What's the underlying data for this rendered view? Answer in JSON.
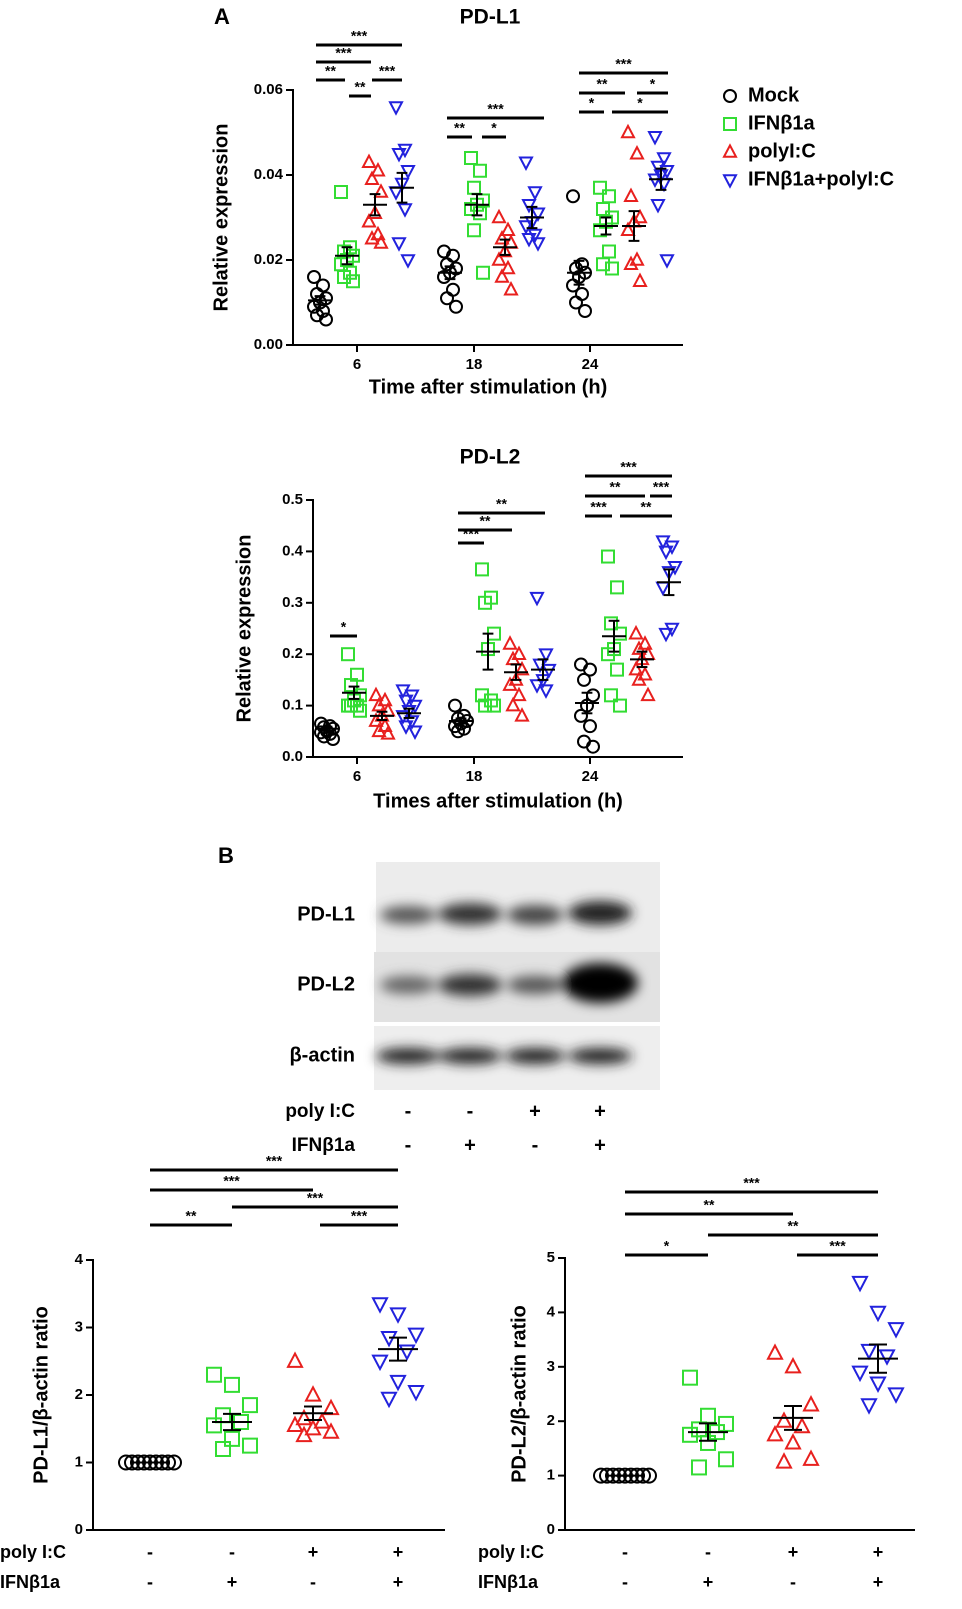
{
  "panels": [
    "A",
    "B"
  ],
  "chart_data": [
    {
      "type": "dotplot",
      "title": "PD-L1",
      "xlabel": "Time after stimulation (h)",
      "ylabel": "Relative expression",
      "categories": [
        "6",
        "18",
        "24"
      ],
      "ylim": [
        0,
        0.06
      ],
      "yticks": [
        {
          "value": 0,
          "label": "0.00"
        },
        {
          "value": 0.02,
          "label": "0.02"
        },
        {
          "value": 0.04,
          "label": "0.04"
        },
        {
          "value": 0.06,
          "label": "0.06"
        }
      ],
      "legend": "right",
      "series": [
        {
          "name": "Mock",
          "color": "#000000",
          "marker": "circle",
          "values": [
            [
              0.016,
              0.014,
              0.012,
              0.011,
              0.01,
              0.009,
              0.008,
              0.007,
              0.006
            ],
            [
              0.022,
              0.021,
              0.019,
              0.018,
              0.017,
              0.016,
              0.013,
              0.011,
              0.009
            ],
            [
              0.035,
              0.019,
              0.018,
              0.017,
              0.016,
              0.014,
              0.012,
              0.01,
              0.008
            ]
          ],
          "mean": [
            0.0105,
            0.017,
            0.017
          ],
          "sem": [
            0.001,
            0.0015,
            0.0028
          ]
        },
        {
          "name": "IFNβ1a",
          "color": "#33dd33",
          "marker": "square",
          "values": [
            [
              0.036,
              0.023,
              0.022,
              0.021,
              0.02,
              0.019,
              0.017,
              0.016,
              0.015
            ],
            [
              0.044,
              0.041,
              0.037,
              0.034,
              0.033,
              0.032,
              0.031,
              0.027,
              0.017
            ],
            [
              0.037,
              0.035,
              0.032,
              0.03,
              0.029,
              0.027,
              0.022,
              0.019,
              0.018
            ]
          ],
          "mean": [
            0.021,
            0.033,
            0.028
          ],
          "sem": [
            0.002,
            0.0025,
            0.002
          ]
        },
        {
          "name": "polyI:C",
          "color": "#e8201e",
          "marker": "triangle-up",
          "values": [
            [
              0.043,
              0.041,
              0.039,
              0.036,
              0.031,
              0.029,
              0.026,
              0.025,
              0.024
            ],
            [
              0.03,
              0.027,
              0.025,
              0.024,
              0.022,
              0.02,
              0.018,
              0.016,
              0.013
            ],
            [
              0.05,
              0.045,
              0.035,
              0.03,
              0.029,
              0.027,
              0.02,
              0.019,
              0.015
            ]
          ],
          "mean": [
            0.033,
            0.023,
            0.028
          ],
          "sem": [
            0.0025,
            0.0018,
            0.0035
          ]
        },
        {
          "name": "IFNβ1a+polyI:C",
          "color": "#2222dd",
          "marker": "triangle-down",
          "values": [
            [
              0.056,
              0.046,
              0.045,
              0.041,
              0.038,
              0.036,
              0.032,
              0.024,
              0.02
            ],
            [
              0.043,
              0.036,
              0.033,
              0.031,
              0.029,
              0.028,
              0.026,
              0.025,
              0.024
            ],
            [
              0.049,
              0.044,
              0.042,
              0.041,
              0.04,
              0.039,
              0.038,
              0.033,
              0.02
            ]
          ],
          "mean": [
            0.037,
            0.03,
            0.039
          ],
          "sem": [
            0.0035,
            0.0025,
            0.0025
          ]
        }
      ],
      "significance": [
        {
          "label": "**"
        },
        {
          "label": "***"
        },
        {
          "label": "**"
        },
        {
          "label": "***"
        },
        {
          "label": "***"
        },
        {
          "label": "**"
        },
        {
          "label": "*"
        },
        {
          "label": "***"
        },
        {
          "label": "*"
        },
        {
          "label": "*"
        },
        {
          "label": "**"
        },
        {
          "label": "*"
        },
        {
          "label": "***"
        }
      ]
    },
    {
      "type": "dotplot",
      "title": "PD-L2",
      "xlabel": "Times after stimulation (h)",
      "ylabel": "Relative expression",
      "categories": [
        "6",
        "18",
        "24"
      ],
      "ylim": [
        0,
        0.5
      ],
      "yticks": [
        {
          "value": 0,
          "label": "0.0"
        },
        0.1,
        0.2,
        0.3,
        0.4,
        0.5
      ],
      "series": [
        {
          "name": "Mock",
          "color": "#000000",
          "marker": "circle",
          "values": [
            [
              0.065,
              0.06,
              0.058,
              0.055,
              0.05,
              0.048,
              0.045,
              0.04,
              0.035
            ],
            [
              0.1,
              0.08,
              0.075,
              0.07,
              0.065,
              0.06,
              0.055,
              0.05
            ],
            [
              0.18,
              0.17,
              0.15,
              0.12,
              0.1,
              0.08,
              0.06,
              0.03,
              0.02
            ]
          ],
          "mean": [
            0.055,
            0.07,
            0.105
          ],
          "sem": [
            0.004,
            0.005,
            0.02
          ]
        },
        {
          "name": "IFNβ1a",
          "color": "#33dd33",
          "marker": "square",
          "values": [
            [
              0.2,
              0.16,
              0.14,
              0.12,
              0.11,
              0.1,
              0.1,
              0.1,
              0.09
            ],
            [
              0.365,
              0.31,
              0.3,
              0.24,
              0.21,
              0.12,
              0.11,
              0.1,
              0.1
            ],
            [
              0.39,
              0.33,
              0.26,
              0.24,
              0.21,
              0.2,
              0.17,
              0.12,
              0.1
            ]
          ],
          "mean": [
            0.125,
            0.205,
            0.235
          ],
          "sem": [
            0.012,
            0.035,
            0.03
          ]
        },
        {
          "name": "polyI:C",
          "color": "#e8201e",
          "marker": "triangle-up",
          "values": [
            [
              0.12,
              0.11,
              0.1,
              0.09,
              0.08,
              0.07,
              0.06,
              0.05,
              0.045
            ],
            [
              0.22,
              0.2,
              0.19,
              0.17,
              0.15,
              0.14,
              0.12,
              0.1,
              0.08
            ],
            [
              0.24,
              0.22,
              0.21,
              0.2,
              0.19,
              0.17,
              0.16,
              0.15,
              0.12
            ]
          ],
          "mean": [
            0.08,
            0.165,
            0.19
          ],
          "sem": [
            0.008,
            0.015,
            0.015
          ]
        },
        {
          "name": "IFNβ1a+polyI:C",
          "color": "#2222dd",
          "marker": "triangle-down",
          "values": [
            [
              0.13,
              0.12,
              0.11,
              0.1,
              0.09,
              0.08,
              0.07,
              0.06,
              0.05
            ],
            [
              0.31,
              0.2,
              0.18,
              0.17,
              0.15,
              0.14,
              0.13
            ],
            [
              0.42,
              0.41,
              0.4,
              0.37,
              0.36,
              0.33,
              0.25,
              0.24
            ]
          ],
          "mean": [
            0.085,
            0.17,
            0.34
          ],
          "sem": [
            0.009,
            0.02,
            0.025
          ]
        }
      ],
      "significance": [
        {
          "label": "*"
        },
        {
          "label": "***"
        },
        {
          "label": "**"
        },
        {
          "label": "**"
        },
        {
          "label": "***"
        },
        {
          "label": "**"
        },
        {
          "label": "**"
        },
        {
          "label": "***"
        },
        {
          "label": "***"
        }
      ]
    },
    {
      "type": "strip",
      "ylabel": "PD-L1/β-actin ratio",
      "ylim": [
        0,
        4
      ],
      "yticks": [
        0,
        1,
        2,
        3,
        4
      ],
      "conditions": [
        {
          "name": "poly I:C",
          "labels": [
            "-",
            "-",
            "+",
            "+"
          ]
        },
        {
          "name": "IFNβ1a",
          "labels": [
            "-",
            "+",
            "-",
            "+"
          ]
        }
      ],
      "groups": [
        {
          "color": "#000000",
          "marker": "circle",
          "values": [
            1,
            1,
            1,
            1,
            1,
            1,
            1,
            1,
            1
          ],
          "mean": 1,
          "sem": 0
        },
        {
          "color": "#33dd33",
          "marker": "square",
          "values": [
            2.3,
            2.15,
            1.85,
            1.7,
            1.6,
            1.55,
            1.35,
            1.25,
            1.2
          ],
          "mean": 1.6,
          "sem": 0.12
        },
        {
          "color": "#e8201e",
          "marker": "triangle-up",
          "values": [
            2.5,
            2.0,
            1.8,
            1.65,
            1.6,
            1.55,
            1.5,
            1.45,
            1.4
          ],
          "mean": 1.73,
          "sem": 0.1
        },
        {
          "color": "#2222dd",
          "marker": "triangle-down",
          "values": [
            3.35,
            3.2,
            2.9,
            2.85,
            2.65,
            2.5,
            2.2,
            2.05,
            1.95
          ],
          "mean": 2.68,
          "sem": 0.17
        }
      ],
      "significance": [
        {
          "label": "**"
        },
        {
          "label": "***"
        },
        {
          "label": "***"
        },
        {
          "label": "***"
        },
        {
          "label": "***"
        }
      ]
    },
    {
      "type": "strip",
      "ylabel": "PD-L2/β-actin ratio",
      "ylim": [
        0,
        5
      ],
      "yticks": [
        0,
        1,
        2,
        3,
        4,
        5
      ],
      "conditions": [
        {
          "name": "poly I:C",
          "labels": [
            "-",
            "-",
            "+",
            "+"
          ]
        },
        {
          "name": "IFNβ1a",
          "labels": [
            "-",
            "+",
            "-",
            "+"
          ]
        }
      ],
      "groups": [
        {
          "color": "#000000",
          "marker": "circle",
          "values": [
            1,
            1,
            1,
            1,
            1,
            1,
            1,
            1,
            1
          ],
          "mean": 1,
          "sem": 0
        },
        {
          "color": "#33dd33",
          "marker": "square",
          "values": [
            2.8,
            2.1,
            1.95,
            1.85,
            1.8,
            1.75,
            1.6,
            1.3,
            1.15
          ],
          "mean": 1.8,
          "sem": 0.16
        },
        {
          "color": "#e8201e",
          "marker": "triangle-up",
          "values": [
            3.25,
            3.0,
            2.3,
            2.0,
            1.9,
            1.75,
            1.6,
            1.3,
            1.25
          ],
          "mean": 2.06,
          "sem": 0.22
        },
        {
          "color": "#2222dd",
          "marker": "triangle-down",
          "values": [
            4.55,
            4.0,
            3.7,
            3.3,
            3.2,
            2.9,
            2.7,
            2.5,
            2.3
          ],
          "mean": 3.15,
          "sem": 0.26
        }
      ],
      "significance": [
        {
          "label": "*"
        },
        {
          "label": "***"
        },
        {
          "label": "**"
        },
        {
          "label": "**"
        },
        {
          "label": "***"
        }
      ]
    }
  ],
  "blot": {
    "bands": [
      "PD-L1",
      "PD-L2",
      "β-actin"
    ],
    "conditions": [
      {
        "name": "poly I:C",
        "labels": [
          "-",
          "-",
          "+",
          "+"
        ]
      },
      {
        "name": "IFNβ1a",
        "labels": [
          "-",
          "+",
          "-",
          "+"
        ]
      }
    ]
  }
}
